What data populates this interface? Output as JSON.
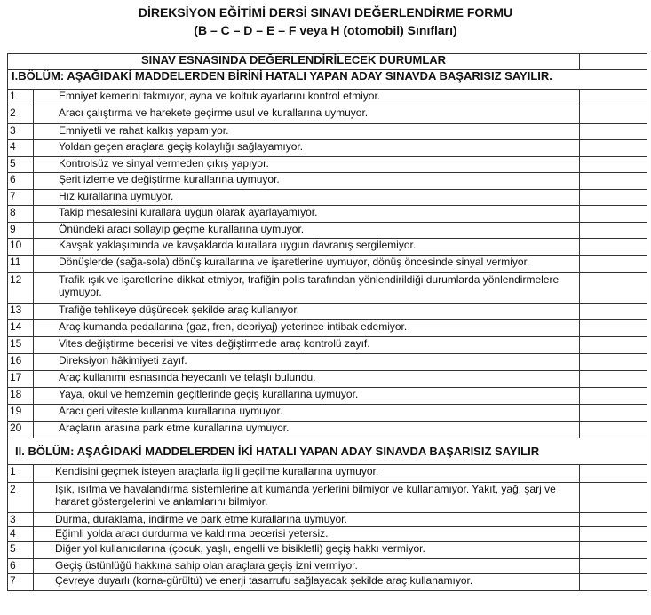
{
  "header": {
    "title": "DİREKSİYON EĞİTİMİ DERSİ SINAVI DEĞERLENDİRME FORMU",
    "subtitle": "(B – C – D – E – F veya H (otomobil) Sınıfları)"
  },
  "table": {
    "heading": "SINAV ESNASINDA DEĞERLENDİRİLECEK DURUMLAR",
    "sections": [
      {
        "title": "I.BÖLÜM: AŞAĞIDAKİ MADDELERDEN BİRİNİ HATALI YAPAN ADAY SINAVDA BAŞARISIZ SAYILIR.",
        "rows": [
          {
            "number": "1",
            "text": "Emniyet kemerini takmıyor, ayna ve koltuk ayarlarını kontrol etmiyor."
          },
          {
            "number": "2",
            "text": "Aracı çalıştırma ve harekete geçirme usul ve kurallarına uymuyor."
          },
          {
            "number": "3",
            "text": "Emniyetli ve rahat kalkış yapamıyor."
          },
          {
            "number": "4",
            "text": "Yoldan geçen araçlara geçiş kolaylığı sağlayamıyor."
          },
          {
            "number": "5",
            "text": "Kontrolsüz ve sinyal vermeden çıkış yapıyor."
          },
          {
            "number": "6",
            "text": "Şerit izleme ve değiştirme kurallarına uymuyor."
          },
          {
            "number": "7",
            "text": "Hız kurallarına uymuyor."
          },
          {
            "number": "8",
            "text": "Takip mesafesini kurallara uygun olarak ayarlayamıyor."
          },
          {
            "number": "9",
            "text": "Önündeki aracı sollayıp geçme kurallarına uymuyor."
          },
          {
            "number": "10",
            "text": "Kavşak yaklaşımında ve kavşaklarda kurallara uygun davranış sergilemiyor."
          },
          {
            "number": "11",
            "text": "Dönüşlerde (sağa-sola) dönüş kurallarına ve işaretlerine uymuyor, dönüş öncesinde sinyal vermiyor."
          },
          {
            "number": "12",
            "text": "Trafik ışık ve işaretlerine dikkat etmiyor, trafiğin polis tarafından yönlendirildiği durumlarda yönlendirmelere uymuyor."
          },
          {
            "number": "13",
            "text": "Trafiğe tehlikeye düşürecek şekilde araç kullanıyor."
          },
          {
            "number": "14",
            "text": "Araç kumanda pedallarına (gaz, fren, debriyaj) yeterince intibak edemiyor."
          },
          {
            "number": "15",
            "text": "Vites değiştirme becerisi ve vites değiştirmede araç kontrolü zayıf."
          },
          {
            "number": "16",
            "text": "Direksiyon hâkimiyeti zayıf."
          },
          {
            "number": "17",
            "text": "Araç kullanımı esnasında heyecanlı ve telaşlı bulundu."
          },
          {
            "number": "18",
            "text": "Yaya, okul ve hemzemin geçitlerinde geçiş kurallarına uymuyor."
          },
          {
            "number": "19",
            "text": "Aracı geri viteste kullanma kurallarına uymuyor."
          },
          {
            "number": "20",
            "text": "Araçların arasına park etme kurallarına uymuyor."
          }
        ]
      },
      {
        "title": "II. BÖLÜM: AŞAĞIDAKİ MADDELERDEN İKİ HATALI YAPAN ADAY SINAVDA BAŞARISIZ SAYILIR",
        "rows": [
          {
            "number": "1",
            "text": "Kendisini geçmek isteyen araçlarla ilgili geçilme kurallarına uymuyor."
          },
          {
            "number": "2",
            "text": "Işık, ısıtma ve havalandırma sistemlerine ait kumanda yerlerini bilmiyor ve kullanamıyor. Yakıt, yağ, şarj ve hararet göstergelerini ve anlamlarını bilmiyor."
          },
          {
            "number": "3",
            "text": "Durma, duraklama, indirme ve park etme kurallarına uymuyor."
          },
          {
            "number": "4",
            "text": "Eğimli yolda aracı durdurma ve kaldırma becerisi yetersiz."
          },
          {
            "number": "5",
            "text": "Diğer yol kullanıcılarına (çocuk, yaşlı, engelli ve bisikletli) geçiş hakkı vermiyor."
          },
          {
            "number": "6",
            "text": "Geçiş üstünlüğü hakkına sahip olan araçlara geçiş izni vermiyor."
          },
          {
            "number": "7",
            "text": "Çevreye duyarlı (korna-gürültü) ve enerji tasarrufu sağlayacak şekilde araç kullanamıyor."
          }
        ]
      }
    ]
  }
}
